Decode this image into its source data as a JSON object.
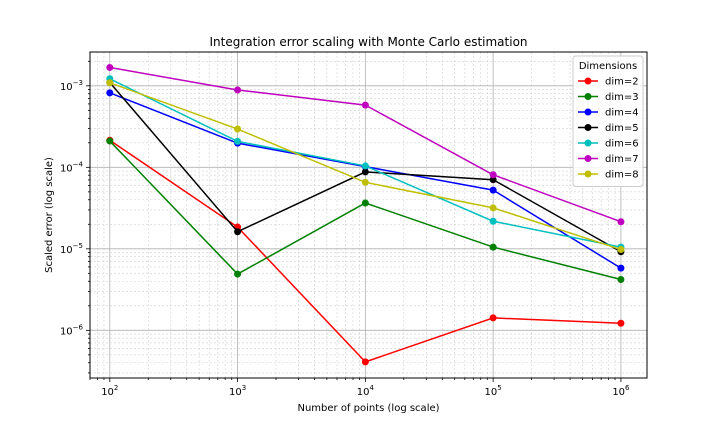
{
  "chart_data": {
    "type": "line",
    "title": "Integration error scaling with Monte Carlo estimation",
    "xlabel": "Number of points (log scale)",
    "ylabel": "Scaled error (log scale)",
    "xscale": "log",
    "yscale": "log",
    "xlim": [
      70,
      1600000
    ],
    "ylim": [
      2.6e-07,
      0.0026
    ],
    "grid": true,
    "legend_title": "Dimensions",
    "legend_position": "top-right",
    "x": [
      100,
      1000,
      10000,
      100000,
      1000000
    ],
    "x_tick_labels": [
      {
        "base": "10",
        "exp": "2"
      },
      {
        "base": "10",
        "exp": "3"
      },
      {
        "base": "10",
        "exp": "4"
      },
      {
        "base": "10",
        "exp": "5"
      },
      {
        "base": "10",
        "exp": "6"
      }
    ],
    "y_ticks": [
      1e-06,
      1e-05,
      0.0001,
      0.001
    ],
    "y_tick_labels": [
      {
        "base": "10",
        "exp": "−6"
      },
      {
        "base": "10",
        "exp": "−5"
      },
      {
        "base": "10",
        "exp": "−4"
      },
      {
        "base": "10",
        "exp": "−3"
      }
    ],
    "series": [
      {
        "name": "dim=2",
        "color": "#ff0000",
        "values": [
          0.000215,
          1.85e-05,
          4.1e-07,
          1.42e-06,
          1.22e-06
        ]
      },
      {
        "name": "dim=3",
        "color": "#008000",
        "values": [
          0.00021,
          4.9e-06,
          3.65e-05,
          1.05e-05,
          4.2e-06
        ]
      },
      {
        "name": "dim=4",
        "color": "#0000ff",
        "values": [
          0.00082,
          0.000198,
          0.000102,
          5.25e-05,
          5.8e-06
        ]
      },
      {
        "name": "dim=5",
        "color": "#000000",
        "values": [
          0.0011,
          1.62e-05,
          8.78e-05,
          7.05e-05,
          9.2e-06
        ]
      },
      {
        "name": "dim=6",
        "color": "#00bfbf",
        "values": [
          0.00122,
          0.000208,
          0.000104,
          2.18e-05,
          1.05e-05
        ]
      },
      {
        "name": "dim=7",
        "color": "#bf00bf",
        "values": [
          0.00168,
          0.00089,
          0.00058,
          8.1e-05,
          2.15e-05
        ]
      },
      {
        "name": "dim=8",
        "color": "#bfbf00",
        "values": [
          0.00109,
          0.000295,
          6.55e-05,
          3.18e-05,
          9.8e-06
        ]
      }
    ]
  }
}
